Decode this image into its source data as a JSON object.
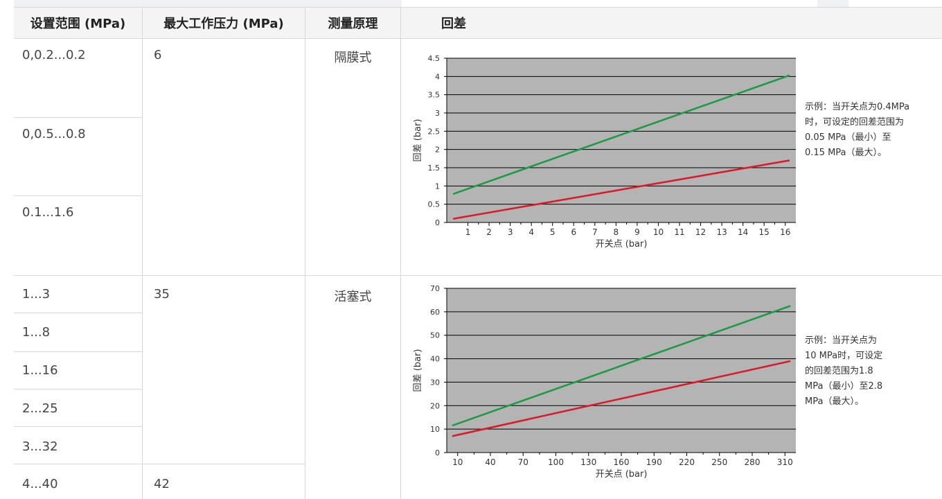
{
  "table": {
    "headers": {
      "setting_range": "设置范围 (MPa)",
      "max_pressure": "最大工作压力 (MPa)",
      "principle": "测量原理",
      "hysteresis": "回差"
    },
    "ranges": [
      "0,0.2...0.2",
      "0,0.5...0.8",
      "0.1...1.6",
      "1...3",
      "1...8",
      "1...16",
      "2...25",
      "3...32",
      "4...40"
    ],
    "max_pressures": [
      "6",
      "35",
      "42"
    ],
    "principles": [
      "隔膜式",
      "活塞式"
    ]
  },
  "notes": {
    "chart1": [
      "示例：当开关点为0.4MPa",
      "时，可设定的回差范围为",
      "0.05 MPa（最小）至",
      "0.15 MPa（最大）。"
    ],
    "chart2": [
      "示例：当开关点为",
      "10 MPa时，可设定",
      "的回差范围为1.8",
      "MPa（最小）至2.8",
      "MPa（最大）。"
    ]
  },
  "colors": {
    "plot_bg": "#b4b4b4",
    "upper_line": "#1e9a46",
    "lower_line": "#d81c2c"
  },
  "chart_data": [
    {
      "type": "line",
      "xlabel": "开关点 (bar)",
      "ylabel": "回差 (bar)",
      "xlim": [
        0,
        16.5
      ],
      "ylim": [
        0,
        4.5
      ],
      "xticks": [
        1,
        2,
        3,
        4,
        5,
        6,
        7,
        8,
        9,
        10,
        11,
        12,
        13,
        14,
        15,
        16
      ],
      "yticks": [
        0,
        0.5,
        1,
        1.5,
        2,
        2.5,
        3,
        3.5,
        4,
        4.5
      ],
      "ytick_labels": [
        "0",
        "0.5",
        "1",
        "1.5",
        "2",
        "2.5",
        "3",
        "3.5",
        "4",
        "4.5"
      ],
      "grid": "horizontal",
      "series": [
        {
          "color": "#1e9a46",
          "x": [
            0.3,
            16.2
          ],
          "y": [
            0.78,
            4.03
          ]
        },
        {
          "color": "#d81c2c",
          "x": [
            0.3,
            16.2
          ],
          "y": [
            0.1,
            1.7
          ]
        }
      ]
    },
    {
      "type": "line",
      "xlabel": "开关点 (bar)",
      "ylabel": "回差 (bar)",
      "xlim": [
        0,
        320
      ],
      "ylim": [
        0,
        70
      ],
      "xticks": [
        10,
        40,
        70,
        100,
        130,
        160,
        190,
        220,
        250,
        280,
        310
      ],
      "yticks": [
        0,
        10,
        20,
        30,
        40,
        50,
        60,
        70
      ],
      "ytick_labels": [
        "0",
        "10",
        "20",
        "30",
        "40",
        "50",
        "60",
        "70"
      ],
      "grid": "horizontal",
      "series": [
        {
          "color": "#1e9a46",
          "x": [
            5,
            315
          ],
          "y": [
            11.5,
            62.5
          ]
        },
        {
          "color": "#d81c2c",
          "x": [
            5,
            315
          ],
          "y": [
            7,
            39
          ]
        }
      ]
    }
  ]
}
